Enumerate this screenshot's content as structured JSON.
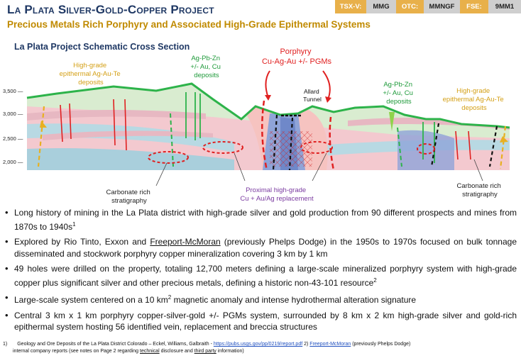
{
  "header": {
    "title": "La Plata Silver-Gold-Copper Project",
    "subtitle": "Precious Metals Rich Porphyry and Associated High-Grade Epithermal Systems",
    "tickers": [
      {
        "label": "TSX-V:",
        "value": "MMG"
      },
      {
        "label": "OTC:",
        "value": "MMNGF"
      },
      {
        "label": "FSE:",
        "value": "9MM1"
      }
    ]
  },
  "diagram": {
    "title": "La Plata Project Schematic Cross Section",
    "elevations": [
      "3,500 —",
      "3,000 —",
      "2,500 —",
      "2,000 —"
    ],
    "labels": {
      "epi_left": [
        "High-grade",
        "epithermal Ag-Au-Te",
        "deposits"
      ],
      "agpbzn_left": [
        "Ag-Pb-Zn",
        "+/- Au, Cu",
        "deposits"
      ],
      "porphyry": [
        "Porphyry",
        "Cu-Ag-Au +/- PGMs"
      ],
      "allard": [
        "Allard",
        "Tunnel"
      ],
      "agpbzn_right": [
        "Ag-Pb-Zn",
        "+/- Au, Cu",
        "deposits"
      ],
      "epi_right": [
        "High-grade",
        "epithermal Ag-Au-Te",
        "deposits"
      ],
      "carb_left": [
        "Carbonate rich",
        "stratigraphy"
      ],
      "proximal": [
        "Proximal high-grade",
        "Cu + Au/Ag replacement"
      ],
      "carb_right": [
        "Carbonate rich",
        "stratigraphy"
      ]
    },
    "colors": {
      "surface": "#2db34a",
      "porphyry": "#e02020",
      "gold_text": "#d4a017",
      "green_text": "#1e9a3a",
      "purple_text": "#7a3aa0"
    }
  },
  "bullets": {
    "b1": "Long history of mining in the La Plata district with high-grade silver and gold production from 90 different prospects and mines from 1870s to 1940s",
    "b1_sup": "1",
    "b2_pre": "Explored by Rio Tinto, Exxon and ",
    "b2_link": "Freeport-McMoran",
    "b2_post": " (previously Phelps Dodge) in the 1950s to 1970s focused on bulk tonnage disseminated and stockwork porphyry copper mineralization covering 3 km by 1 km",
    "b3": "49 holes were drilled on the property, totaling 12,700 meters defining a large-scale mineralized porphyry system with high-grade copper plus significant silver and other precious metals, defining a historic non-43-101 resource",
    "b3_sup": "2",
    "b4_pre": "Large-scale system centered on a 10 km",
    "b4_sup": "2",
    "b4_post": " magnetic anomaly and intense hydrothermal alteration signature",
    "b5": "Central 3 km x 1 km porphyry copper-silver-gold +/- PGMs system, surrounded by 8 km x 2 km high-grade silver and gold-rich epithermal system hosting 56 identified vein, replacement and breccia structures"
  },
  "footnote": {
    "num": "1)",
    "text1": "Geology and Ore Deposits of the La Plata District Colorado – Eckel, Williams, Galbraith - ",
    "link": "https://pubs.usgs.gov/pp/0219/report.pdf",
    "text2": " 2) ",
    "link2": "Freeport-McMoran",
    "text3": " (previously Phelps Dodge)",
    "line2a": "internal company reports (see notes on Page 2 regarding ",
    "line2b": "technical",
    "line2c": " disclosure and ",
    "line2d": "third party",
    "line2e": " information)"
  }
}
